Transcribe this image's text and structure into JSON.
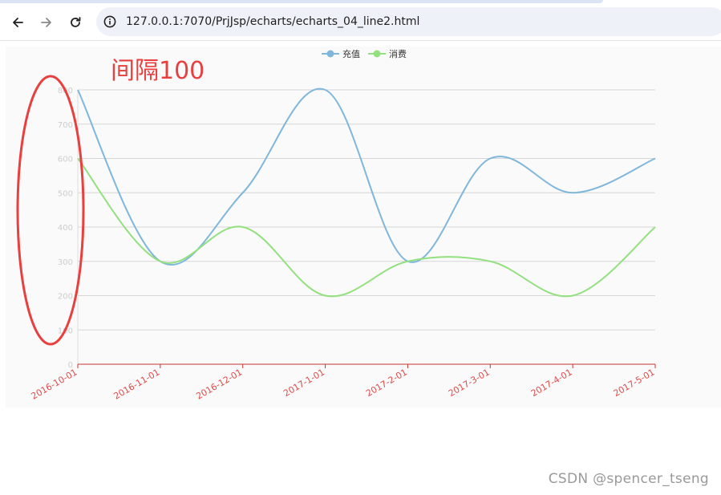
{
  "browser": {
    "url": "127.0.0.1:7070/PrjJsp/echarts/echarts_04_line2.html"
  },
  "annotation": {
    "text": "间隔100",
    "color": "#e8403f"
  },
  "watermark": "CSDN @spencer_tseng",
  "colors": {
    "series_1": "#7fb7dc",
    "series_2": "#93e07f",
    "x_axis_line": "#c23531",
    "x_tick_label": "#e24a4a",
    "y_tick_label": "#cccccc",
    "grid": "#d6d6d6"
  },
  "chart_data": {
    "type": "line",
    "smooth": true,
    "title": "",
    "xlabel": "",
    "ylabel": "",
    "x": [
      "2016-10-01",
      "2016-11-01",
      "2016-12-01",
      "2017-1-01",
      "2017-2-01",
      "2017-3-01",
      "2017-4-01",
      "2017-5-01"
    ],
    "series": [
      {
        "name": "充值",
        "values": [
          800,
          300,
          500,
          800,
          300,
          600,
          500,
          600
        ]
      },
      {
        "name": "消费",
        "values": [
          600,
          300,
          400,
          200,
          300,
          300,
          200,
          400
        ]
      }
    ],
    "yticks": [
      0,
      100,
      200,
      300,
      400,
      500,
      600,
      700,
      800
    ],
    "ylim": [
      0,
      800
    ],
    "y_interval": 100,
    "grid": true,
    "legend_position": "top-center",
    "x_tick_rotation_deg": 30
  }
}
